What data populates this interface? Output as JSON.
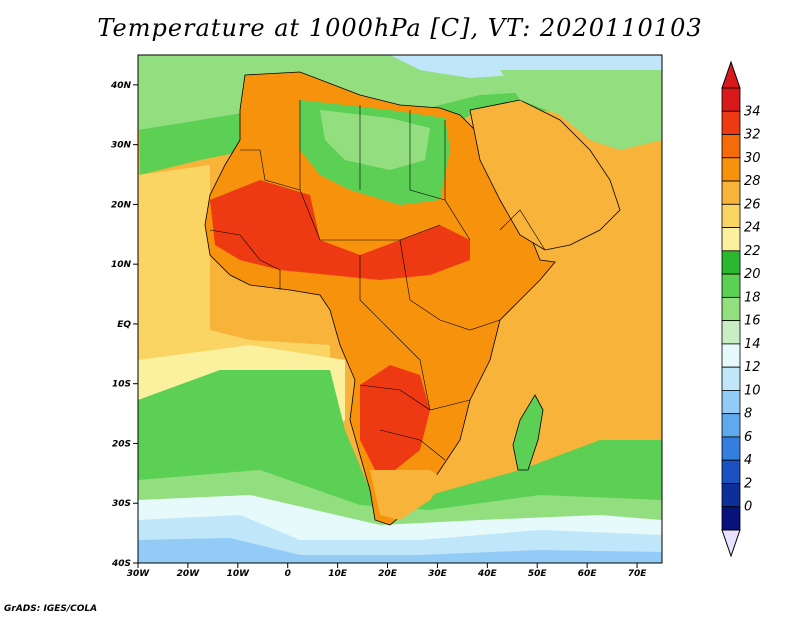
{
  "title": "Temperature at 1000hPa [C], VT: 2020110103",
  "credit": "GrADS: IGES/COLA",
  "map": {
    "lon_range": [
      -30,
      75
    ],
    "lat_range": [
      -40,
      45
    ],
    "lat_ticks": [
      {
        "value": 40,
        "label": "40N"
      },
      {
        "value": 30,
        "label": "30N"
      },
      {
        "value": 20,
        "label": "20N"
      },
      {
        "value": 10,
        "label": "10N"
      },
      {
        "value": 0,
        "label": "EQ"
      },
      {
        "value": -10,
        "label": "10S"
      },
      {
        "value": -20,
        "label": "20S"
      },
      {
        "value": -30,
        "label": "30S"
      },
      {
        "value": -40,
        "label": "40S"
      }
    ],
    "lon_ticks": [
      {
        "value": -30,
        "label": "30W"
      },
      {
        "value": -20,
        "label": "20W"
      },
      {
        "value": -10,
        "label": "10W"
      },
      {
        "value": 0,
        "label": "0"
      },
      {
        "value": 10,
        "label": "10E"
      },
      {
        "value": 20,
        "label": "20E"
      },
      {
        "value": 30,
        "label": "30E"
      },
      {
        "value": 40,
        "label": "40E"
      },
      {
        "value": 50,
        "label": "50E"
      },
      {
        "value": 60,
        "label": "60E"
      },
      {
        "value": 70,
        "label": "70E"
      }
    ]
  },
  "colorbar": {
    "labels": [
      "34",
      "32",
      "30",
      "28",
      "26",
      "24",
      "22",
      "20",
      "18",
      "16",
      "14",
      "12",
      "10",
      "8",
      "6",
      "4",
      "2",
      "0"
    ],
    "colors": [
      "#d7191c",
      "#ee3a12",
      "#f56b0a",
      "#f6920c",
      "#f8b33a",
      "#fad563",
      "#fbf09e",
      "#2ab82f",
      "#5ccf55",
      "#93df80",
      "#c8efc4",
      "#e6f9fb",
      "#bfe6f9",
      "#92cbf5",
      "#5fa9ec",
      "#347ee0",
      "#1a52c2",
      "#0c2f99",
      "#07127a"
    ],
    "top_color": "#d7191c",
    "bottom_color": "#e8e1ff"
  },
  "colors": {
    "ocean_warm": "#f8b33a",
    "ocean_mid": "#fad563",
    "ocean_pale": "#fbf09e",
    "ocean_green": "#5ccf55",
    "ocean_pale_green": "#93df80",
    "ocean_cool": "#bfe6f9",
    "ocean_blue": "#92cbf5",
    "land_hot": "#ee3a12",
    "land_warm": "#f6920c",
    "land_mild": "#f8b33a",
    "land_green": "#5ccf55",
    "border": "#000000"
  }
}
